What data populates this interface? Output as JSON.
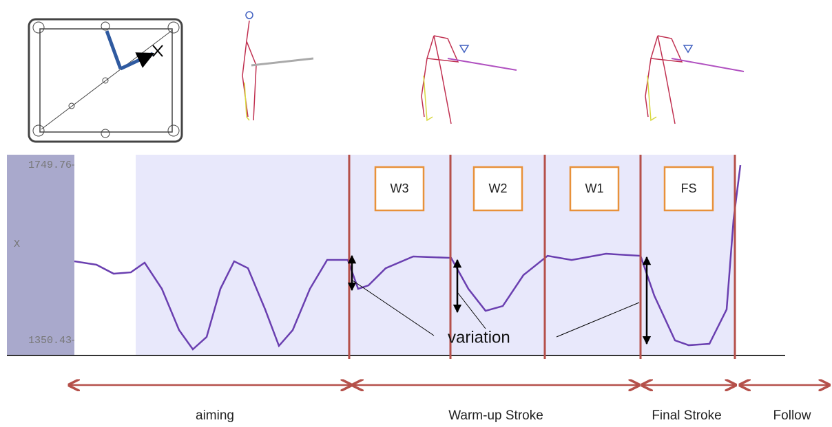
{
  "chart_data": {
    "type": "line",
    "y_label": "X",
    "x": [
      0,
      32,
      57,
      82,
      102,
      127,
      152,
      172,
      192,
      212,
      232,
      252,
      277,
      297,
      317,
      342,
      367,
      397,
      412,
      427,
      452,
      492,
      547,
      572,
      597,
      622,
      652,
      687,
      722,
      772,
      822,
      842,
      872,
      892,
      922,
      947,
      957,
      967
    ],
    "series": [
      {
        "color": "#6a3fb0",
        "values": [
          1530.5,
          1522.7,
          1502.3,
          1505.4,
          1527.4,
          1467.9,
          1373.9,
          1330.1,
          1358.2,
          1467.9,
          1530.5,
          1514.8,
          1420.9,
          1337.9,
          1373.9,
          1467.9,
          1533.6,
          1533.6,
          1467.9,
          1475.7,
          1514.8,
          1541.5,
          1538.3,
          1467.9,
          1417.7,
          1428.7,
          1499.2,
          1543.0,
          1533.6,
          1547.7,
          1543.0,
          1452.2,
          1350.4,
          1339.4,
          1342.6,
          1420.9,
          1624.5,
          1749.7
        ]
      }
    ],
    "xlim": [
      0,
      1000
    ],
    "ylim": [
      1316,
      1773.3
    ],
    "yticks": [
      1350.43,
      1749.76
    ],
    "phases": [
      "W3",
      "W2",
      "W1",
      "FS"
    ],
    "annotation": "variation",
    "stages": [
      "aiming",
      "Warm-up Stroke",
      "Final Stroke",
      "Follow"
    ]
  }
}
